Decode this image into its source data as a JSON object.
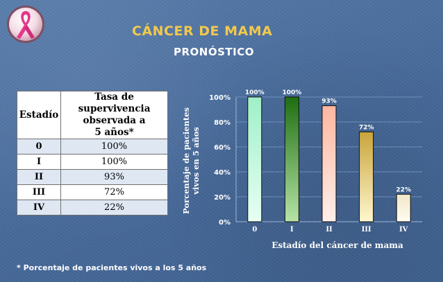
{
  "title": "CÁNCER DE MAMA",
  "subtitle": "PRONÓSTICO",
  "table": {
    "stage_header": "Estadío",
    "rate_header_lines": [
      "Tasa de",
      "supervivencia",
      "observada a",
      "5 años*"
    ],
    "rows": [
      {
        "stage": "0",
        "rate": "100%"
      },
      {
        "stage": "I",
        "rate": "100%"
      },
      {
        "stage": "II",
        "rate": "93%"
      },
      {
        "stage": "III",
        "rate": "72%"
      },
      {
        "stage": "IV",
        "rate": "22%"
      }
    ]
  },
  "footnote": "* Porcentaje de pacientes vivos a los 5 años",
  "chart_data": {
    "type": "bar",
    "categories": [
      "0",
      "I",
      "II",
      "III",
      "IV"
    ],
    "values": [
      100,
      100,
      93,
      72,
      22
    ],
    "data_labels": [
      "100%",
      "100%",
      "93%",
      "72%",
      "22%"
    ],
    "ylabel_lines": [
      "Porcentaje de pacientes",
      "vivos en 5 años"
    ],
    "xlabel": "Estadío del cáncer de mama",
    "ylim": [
      0,
      100
    ],
    "yticks": [
      0,
      20,
      40,
      60,
      80,
      100
    ],
    "ytick_labels": [
      "0%",
      "20%",
      "40%",
      "60%",
      "80%",
      "100%"
    ],
    "grid": true,
    "bar_colors": [
      [
        "#9ff0c8",
        "#e7fff3"
      ],
      [
        "#1e6e12",
        "#b6e4a6"
      ],
      [
        "#ffb6a0",
        "#fff0ea"
      ],
      [
        "#c9a43a",
        "#fff7cf"
      ],
      [
        "#f2e7c7",
        "#fffcf2"
      ]
    ]
  }
}
